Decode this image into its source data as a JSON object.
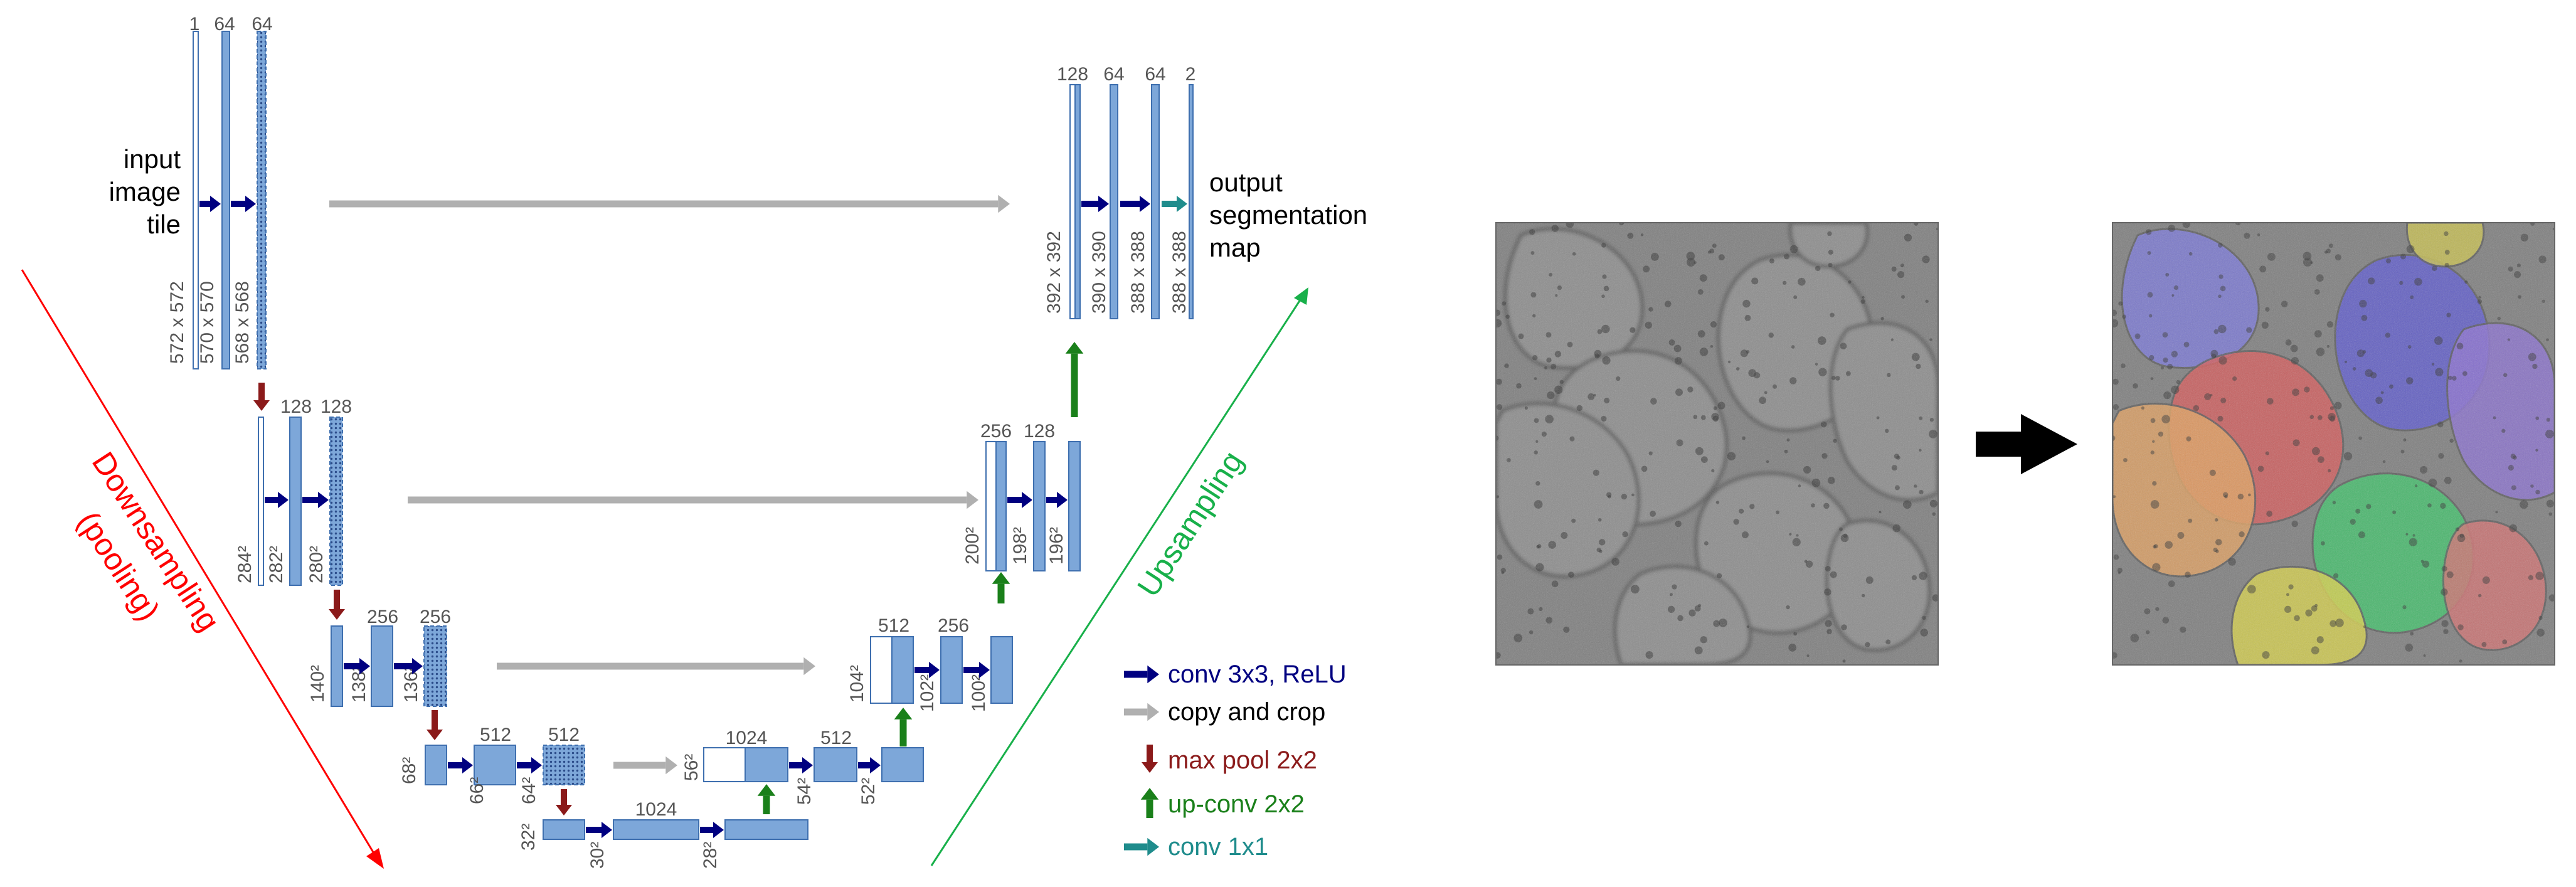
{
  "input_label": [
    "input",
    "image",
    "tile"
  ],
  "output_label": [
    "output",
    "segmentation",
    "map"
  ],
  "directions": {
    "down": [
      "Downsampling",
      "(pooling)"
    ],
    "up": "Upsampling"
  },
  "colors": {
    "fmap": "#7DA7D9",
    "fmap_stroke": "#3E6FAF",
    "conv": "#000080",
    "copy": "#B0B0B0",
    "pool": "#8B1A1A",
    "upconv": "#1A801A",
    "conv1x1": "#1F8C8C",
    "down_arrow": "#FF0000",
    "up_arrow": "#18B04A",
    "number": "#555555"
  },
  "legend": [
    {
      "type": "conv",
      "label": "conv 3x3, ReLU"
    },
    {
      "type": "copy",
      "label": "copy and crop"
    },
    {
      "type": "pool",
      "label": "max pool 2x2"
    },
    {
      "type": "upconv",
      "label": "up-conv 2x2"
    },
    {
      "type": "conv1x1",
      "label": "conv 1x1"
    }
  ],
  "feature_maps": [
    {
      "id": "e1a",
      "channels": "1",
      "size": "572 x 572"
    },
    {
      "id": "e1b",
      "channels": "64",
      "size": "570 x 570"
    },
    {
      "id": "e1c",
      "channels": "64",
      "size": "568 x 568"
    },
    {
      "id": "e2a",
      "channels": "",
      "size": "284²"
    },
    {
      "id": "e2b",
      "channels": "128",
      "size": "282²"
    },
    {
      "id": "e2c",
      "channels": "128",
      "size": "280²"
    },
    {
      "id": "e3a",
      "channels": "",
      "size": "140²"
    },
    {
      "id": "e3b",
      "channels": "256",
      "size": "138²"
    },
    {
      "id": "e3c",
      "channels": "256",
      "size": "136²"
    },
    {
      "id": "e4a",
      "channels": "",
      "size": "68²"
    },
    {
      "id": "e4b",
      "channels": "512",
      "size": "66²"
    },
    {
      "id": "e4c",
      "channels": "512",
      "size": "64²"
    },
    {
      "id": "b1",
      "channels": "",
      "size": "32²"
    },
    {
      "id": "b2",
      "channels": "1024",
      "size": "30²"
    },
    {
      "id": "b3",
      "channels": "",
      "size": "28²"
    },
    {
      "id": "d4a",
      "channels": "1024",
      "size": "56²"
    },
    {
      "id": "d4b",
      "channels": "512",
      "size": "54²"
    },
    {
      "id": "d4c",
      "channels": "",
      "size": "52²"
    },
    {
      "id": "d3a",
      "channels": "512",
      "size": "104²"
    },
    {
      "id": "d3b",
      "channels": "256",
      "size": "102²"
    },
    {
      "id": "d3c",
      "channels": "",
      "size": "100²"
    },
    {
      "id": "d2a",
      "channels": "256",
      "size": "200²"
    },
    {
      "id": "d2b",
      "channels": "128",
      "size": "198²"
    },
    {
      "id": "d2c",
      "channels": "",
      "size": "196²"
    },
    {
      "id": "d1a",
      "channels": "128",
      "size": "392 x 392"
    },
    {
      "id": "d1b",
      "channels": "64",
      "size": "390 x 390"
    },
    {
      "id": "d1c",
      "channels": "64",
      "size": "388 x 388"
    },
    {
      "id": "out",
      "channels": "2",
      "size": "388 x 388"
    }
  ],
  "example": {
    "input_image": "cell-microscopy-image",
    "output_image": "segmented-cells-image",
    "transform_icon": "right-arrow-icon"
  }
}
